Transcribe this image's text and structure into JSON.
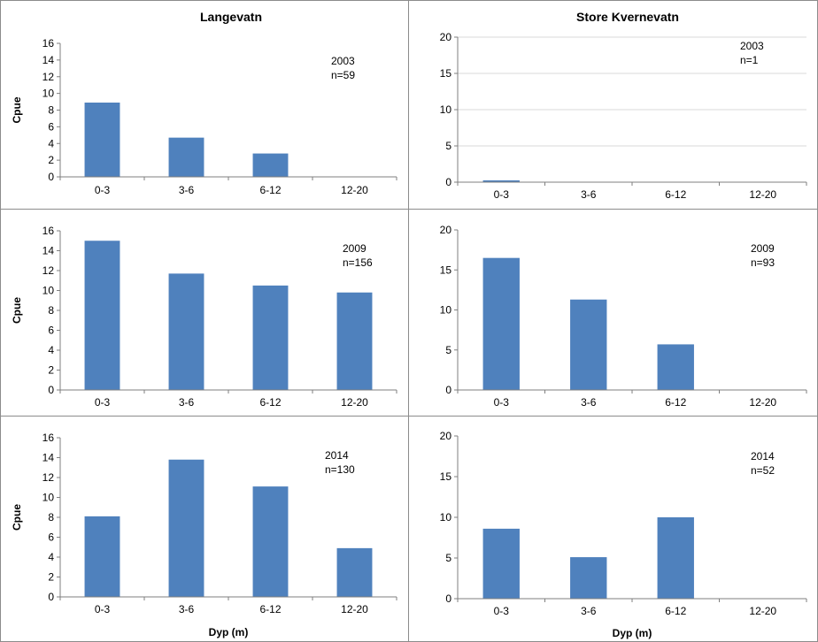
{
  "chart_data": [
    {
      "type": "bar",
      "title": "Langevatn",
      "ylabel": "Cpue",
      "xlabel": "",
      "categories": [
        "0-3",
        "3-6",
        "6-12",
        "12-20"
      ],
      "values": [
        8.9,
        4.7,
        2.8,
        0
      ],
      "ylim": [
        0,
        16
      ],
      "yticks": [
        0,
        2,
        4,
        6,
        8,
        10,
        12,
        14,
        16
      ],
      "annotation": [
        "2003",
        "n=59"
      ],
      "grid": false,
      "color": "#4f81bd"
    },
    {
      "type": "bar",
      "title": "Store Kvernevatn",
      "ylabel": "",
      "xlabel": "",
      "categories": [
        "0-3",
        "3-6",
        "6-12",
        "12-20"
      ],
      "values": [
        0.25,
        0,
        0,
        0
      ],
      "ylim": [
        0,
        20
      ],
      "yticks": [
        0,
        5,
        10,
        15,
        20
      ],
      "annotation": [
        "2003",
        "n=1"
      ],
      "grid": true,
      "color": "#4f81bd"
    },
    {
      "type": "bar",
      "title": "",
      "ylabel": "Cpue",
      "xlabel": "",
      "categories": [
        "0-3",
        "3-6",
        "6-12",
        "12-20"
      ],
      "values": [
        15,
        11.7,
        10.5,
        9.8
      ],
      "ylim": [
        0,
        16
      ],
      "yticks": [
        0,
        2,
        4,
        6,
        8,
        10,
        12,
        14,
        16
      ],
      "annotation": [
        "2009",
        "n=156"
      ],
      "grid": false,
      "color": "#4f81bd"
    },
    {
      "type": "bar",
      "title": "",
      "ylabel": "",
      "xlabel": "",
      "categories": [
        "0-3",
        "3-6",
        "6-12",
        "12-20"
      ],
      "values": [
        16.5,
        11.3,
        5.7,
        0
      ],
      "ylim": [
        0,
        20
      ],
      "yticks": [
        0,
        5,
        10,
        15,
        20
      ],
      "annotation": [
        "2009",
        "n=93"
      ],
      "grid": false,
      "color": "#4f81bd"
    },
    {
      "type": "bar",
      "title": "",
      "ylabel": "Cpue",
      "xlabel": "Dyp (m)",
      "categories": [
        "0-3",
        "3-6",
        "6-12",
        "12-20"
      ],
      "values": [
        8.1,
        13.8,
        11.1,
        4.9
      ],
      "ylim": [
        0,
        16
      ],
      "yticks": [
        0,
        2,
        4,
        6,
        8,
        10,
        12,
        14,
        16
      ],
      "annotation": [
        "2014",
        "n=130"
      ],
      "grid": false,
      "color": "#4f81bd"
    },
    {
      "type": "bar",
      "title": "",
      "ylabel": "",
      "xlabel": "Dyp (m)",
      "categories": [
        "0-3",
        "3-6",
        "6-12",
        "12-20"
      ],
      "values": [
        8.6,
        5.1,
        10,
        0
      ],
      "ylim": [
        0,
        20
      ],
      "yticks": [
        0,
        5,
        10,
        15,
        20
      ],
      "annotation": [
        "2014",
        "n=52"
      ],
      "grid": false,
      "color": "#4f81bd"
    }
  ]
}
